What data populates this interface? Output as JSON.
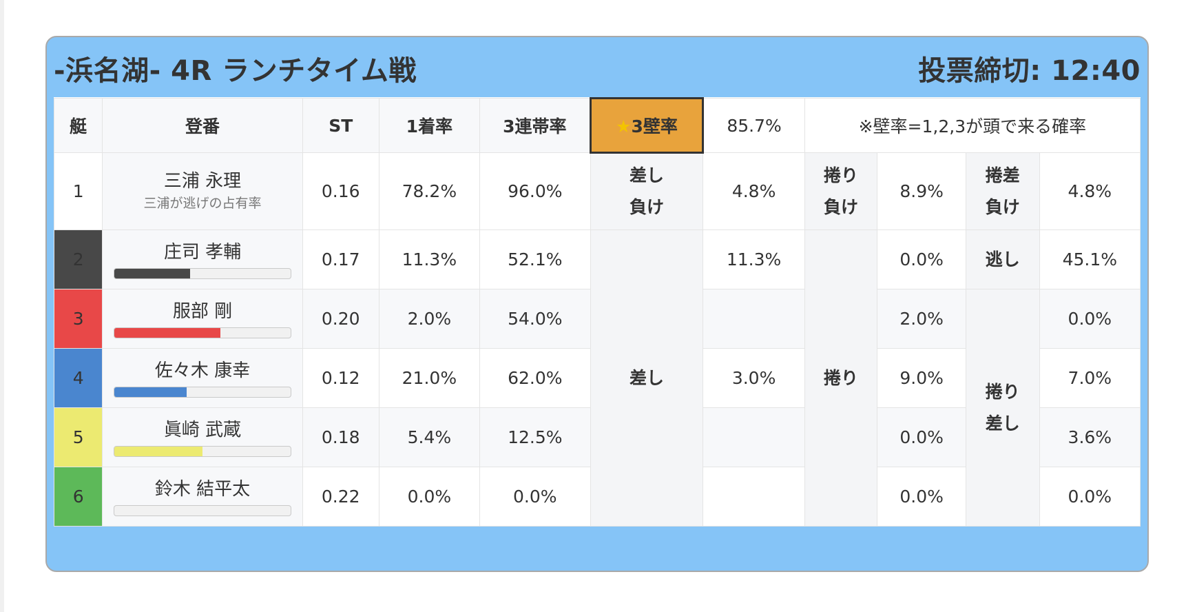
{
  "header": {
    "title": "-浜名湖- 4R ランチタイム戦",
    "deadline": "投票締切: 12:40"
  },
  "columns": {
    "boat": "艇",
    "register": "登番",
    "st": "ST",
    "first_rate": "1着率",
    "trio_rate": "3連帯率",
    "wall_star": "★",
    "wall_label": "3壁率",
    "wall_value": "85.7%",
    "note": "※壁率=1,2,3が頭で来る確率"
  },
  "racers": [
    {
      "boat": "1",
      "name": "三浦 永理",
      "sub": "三浦が逃げの占有率",
      "st": "0.16",
      "first": "78.2%",
      "trio": "96.0%",
      "color": "#ffffff",
      "bar": null
    },
    {
      "boat": "2",
      "name": "庄司 孝輔",
      "st": "0.17",
      "first": "11.3%",
      "trio": "52.1%",
      "color": "#484848",
      "bar": 0.431
    },
    {
      "boat": "3",
      "name": "服部 剛",
      "st": "0.20",
      "first": "2.0%",
      "trio": "54.0%",
      "color": "#e84848",
      "bar": 0.6
    },
    {
      "boat": "4",
      "name": "佐々木 康幸",
      "st": "0.12",
      "first": "21.0%",
      "trio": "62.0%",
      "color": "#4a86cf",
      "bar": 0.41
    },
    {
      "boat": "5",
      "name": "眞崎 武蔵",
      "st": "0.18",
      "first": "5.4%",
      "trio": "12.5%",
      "color": "#ecea71",
      "bar": 0.5
    },
    {
      "boat": "6",
      "name": "鈴木 結平太",
      "st": "0.22",
      "first": "0.0%",
      "trio": "0.0%",
      "color": "#5db959",
      "bar": 0.0
    }
  ],
  "pattern_labels": {
    "sashi_make_1": "差し",
    "sashi_make_2": "負け",
    "makuri_make_1": "捲り",
    "makuri_make_2": "負け",
    "makuri_sashi_make_1": "捲差",
    "makuri_sashi_make_2": "負け",
    "sashi": "差し",
    "makuri": "捲り",
    "nige": "逃し",
    "makuri_sashi_1": "捲り",
    "makuri_sashi_2": "差し"
  },
  "pattern_values": {
    "sashi_make": "4.8%",
    "makuri_make": "8.9%",
    "makuri_sashi_make": "4.8%",
    "sashi": [
      "11.3%",
      "",
      "3.0%",
      "",
      ""
    ],
    "makuri": [
      "0.0%",
      "2.0%",
      "9.0%",
      "0.0%",
      "0.0%"
    ],
    "nige": "45.1%",
    "makuri_sashi": [
      "0.0%",
      "7.0%",
      "3.6%",
      "0.0%"
    ]
  }
}
